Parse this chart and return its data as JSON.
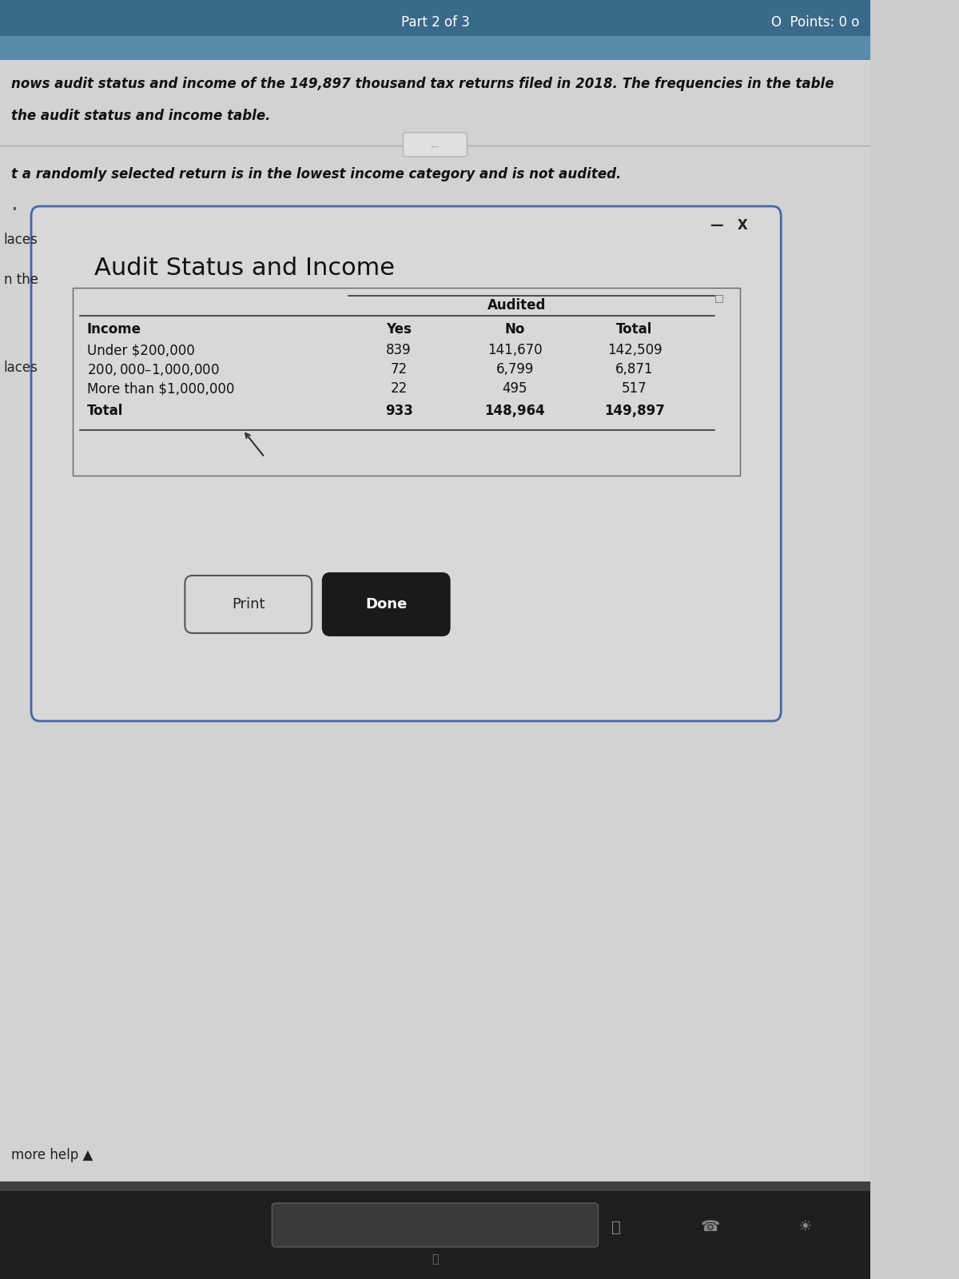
{
  "title": "Audit Status and Income",
  "dialog_bg": "#d8d8d8",
  "page_bg": "#cbcbcb",
  "top_bar_color": "#4a7a9b",
  "header_text": "nows audit status and income of the 149,897 thousand tax returns filed in 2018. The frequencies in the table",
  "sub_header": "the audit status and income table.",
  "question_text": "t a randomly selected return is in the lowest income category and is not audited.",
  "part_label": "Part 2 of 3",
  "points_label": "O  Points: 0 o",
  "more_help": "more help ▲",
  "left_label1": "laces",
  "left_label2": "n the",
  "left_label3": "laces",
  "table_audited": "Audited",
  "table_income": "Income",
  "table_yes": "Yes",
  "table_no": "No",
  "table_total": "Total",
  "rows": [
    {
      "income": "Under $200,000",
      "yes": "839",
      "no": "141,670",
      "total": "142,509"
    },
    {
      "income": "$200,000–$1,000,000",
      "yes": "72",
      "no": "6,799",
      "total": "6,871"
    },
    {
      "income": "More than $1,000,000",
      "yes": "22",
      "no": "495",
      "total": "517"
    },
    {
      "income": "Total",
      "yes": "933",
      "no": "148,964",
      "total": "149,897"
    }
  ],
  "print_btn_text": "Print",
  "done_btn_text": "Done",
  "font_size_title": 20,
  "font_size_body": 11,
  "font_size_table": 11,
  "font_size_header": 11,
  "font_size_part": 12
}
